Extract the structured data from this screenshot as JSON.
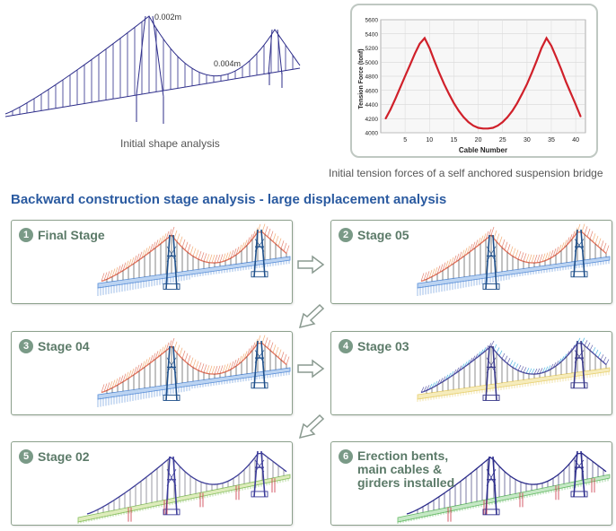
{
  "top": {
    "shape_caption": "Initial shape analysis",
    "label_tower": "0.002m",
    "label_span": "0.004m",
    "tension_caption": "Initial tension forces of a self anchored suspension bridge"
  },
  "chart_data": {
    "type": "line",
    "title": "",
    "xlabel": "Cable Number",
    "ylabel": "Tension Force (tonf)",
    "xlim": [
      0,
      42
    ],
    "ylim": [
      4000,
      5600
    ],
    "xticks": [
      "5",
      "10",
      "15",
      "20",
      "25",
      "30",
      "35",
      "40"
    ],
    "yticks": [
      "4000",
      "4200",
      "4400",
      "4600",
      "4800",
      "5000",
      "5200",
      "5400",
      "5600"
    ],
    "series": [
      {
        "name": "Tension",
        "x": [
          1,
          2,
          3,
          4,
          5,
          6,
          7,
          8,
          9,
          10,
          11,
          12,
          13,
          14,
          15,
          16,
          17,
          18,
          19,
          20,
          21,
          22,
          23,
          24,
          25,
          26,
          27,
          28,
          29,
          30,
          31,
          32,
          33,
          34,
          35,
          36,
          37,
          38,
          39,
          40,
          41
        ],
        "values": [
          4200,
          4330,
          4480,
          4640,
          4800,
          4960,
          5120,
          5260,
          5340,
          5200,
          5020,
          4850,
          4690,
          4550,
          4420,
          4310,
          4220,
          4150,
          4100,
          4070,
          4060,
          4060,
          4070,
          4100,
          4150,
          4220,
          4310,
          4420,
          4550,
          4690,
          4850,
          5020,
          5200,
          5340,
          5230,
          5070,
          4900,
          4720,
          4560,
          4400,
          4230
        ]
      }
    ],
    "color": "#d0202a"
  },
  "section": {
    "title": "Backward construction stage analysis - large displacement analysis"
  },
  "stages": [
    {
      "num": "1",
      "label": "Final Stage"
    },
    {
      "num": "2",
      "label": "Stage 05"
    },
    {
      "num": "3",
      "label": "Stage 04"
    },
    {
      "num": "4",
      "label": "Stage 03"
    },
    {
      "num": "5",
      "label": "Stage 02"
    },
    {
      "num": "6",
      "label": "Erection bents,\nmain cables &\ngirders installed"
    }
  ]
}
